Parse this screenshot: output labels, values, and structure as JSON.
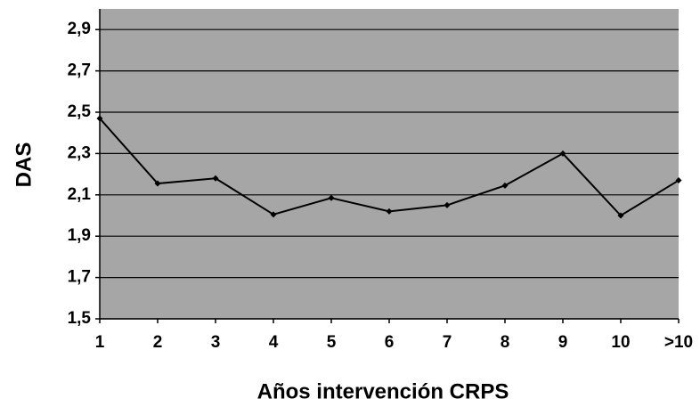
{
  "chart_data": {
    "type": "line",
    "x_label": "Años intervención CRPS",
    "y_label": "DAS",
    "categories": [
      "1",
      "2",
      "3",
      "4",
      "5",
      "6",
      "7",
      "8",
      "9",
      "10",
      ">10"
    ],
    "series": [
      {
        "name": "DAS",
        "color": "#000000",
        "values": [
          2.47,
          2.155,
          2.18,
          2.005,
          2.085,
          2.02,
          2.05,
          2.145,
          2.3,
          2.0,
          2.17
        ]
      }
    ],
    "ylim": [
      1.5,
      3.0
    ],
    "yticks": [
      {
        "value": 1.5,
        "label": "1,5"
      },
      {
        "value": 1.7,
        "label": "1,7"
      },
      {
        "value": 1.9,
        "label": "1,9"
      },
      {
        "value": 2.1,
        "label": "2,1"
      },
      {
        "value": 2.3,
        "label": "2,3"
      },
      {
        "value": 2.5,
        "label": "2,5"
      },
      {
        "value": 2.7,
        "label": "2,7"
      },
      {
        "value": 2.9,
        "label": "2,9"
      }
    ],
    "grid": true,
    "plot_background": "#a6a6a6"
  }
}
